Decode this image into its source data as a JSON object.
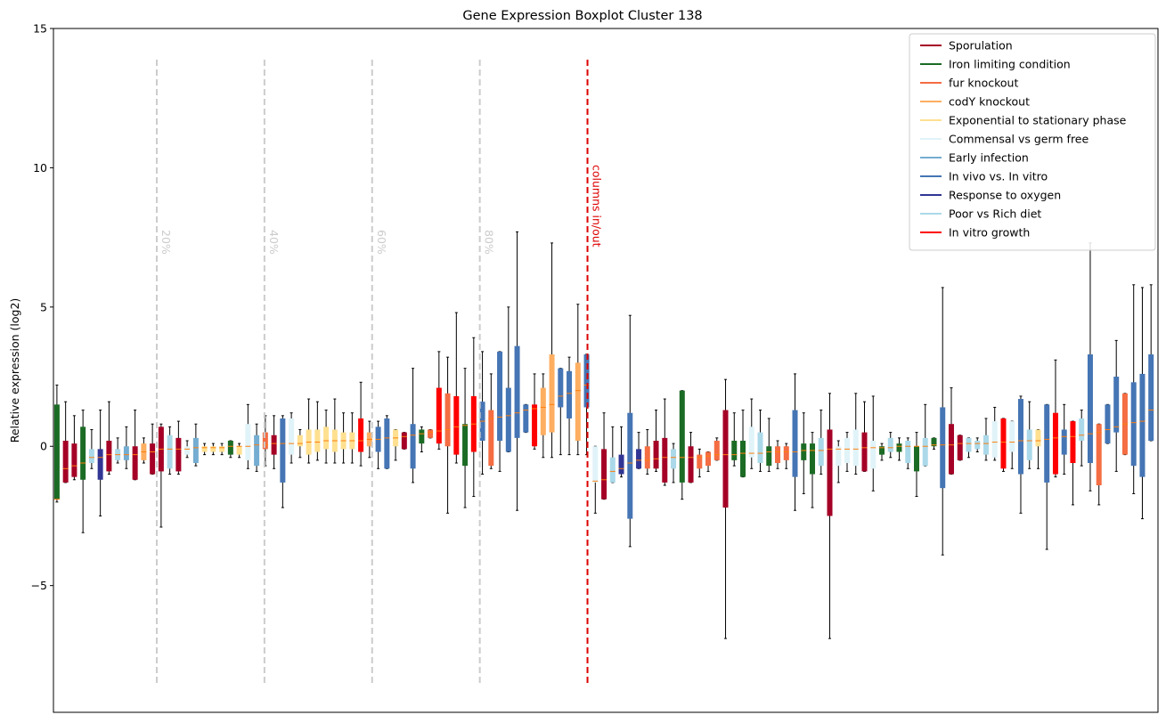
{
  "chart_data": {
    "type": "boxplot",
    "title": "Gene Expression Boxplot Cluster 138",
    "ylabel": "Relative expression (log2)",
    "ylim": [
      -9.55,
      15
    ],
    "yticks": [
      {
        "value": -5,
        "label": "−5"
      },
      0,
      5,
      10,
      15
    ],
    "xlim": [
      0.6,
      127.8
    ],
    "legend": "upper right",
    "series": [
      {
        "name": "Sporulation",
        "color": "#a50026"
      },
      {
        "name": "Iron limiting condition",
        "color": "#1b6b25"
      },
      {
        "name": "fur knockout",
        "color": "#f46d43"
      },
      {
        "name": "codY knockout",
        "color": "#fdae61"
      },
      {
        "name": "Exponential to stationary phase",
        "color": "#fee090"
      },
      {
        "name": "Commensal vs germ free",
        "color": "#e0f3f8"
      },
      {
        "name": "Early infection",
        "color": "#74add1"
      },
      {
        "name": "In vivo vs. In vitro",
        "color": "#4575b4"
      },
      {
        "name": "Response to oxygen",
        "color": "#313695"
      },
      {
        "name": "Poor vs Rich diet",
        "color": "#abd9e9"
      },
      {
        "name": "In vitro growth",
        "color": "#ff0000"
      }
    ],
    "annotations": [
      {
        "x": 12.5,
        "label": "20%",
        "color": "#cccccc"
      },
      {
        "x": 24.9,
        "label": "40%",
        "color": "#cccccc"
      },
      {
        "x": 37.3,
        "label": "60%",
        "color": "#cccccc"
      },
      {
        "x": 49.7,
        "label": "80%",
        "color": "#cccccc"
      },
      {
        "x": 62.1,
        "label": "columns in/out",
        "color": "#dd0000"
      }
    ],
    "boxes": [
      [
        1,
        -2,
        -1.9,
        -1.9,
        1.5,
        2.2
      ],
      [
        0,
        -1.3,
        -1.3,
        -0.8,
        0.2,
        1.6
      ],
      [
        0,
        -1.2,
        -1.1,
        -0.7,
        0.1,
        1.1
      ],
      [
        1,
        -3.1,
        -1.2,
        -0.6,
        0.7,
        1.3
      ],
      [
        9,
        -0.8,
        -0.6,
        -0.4,
        -0.1,
        0.6
      ],
      [
        8,
        -2.5,
        -1.2,
        -0.4,
        -0.1,
        1.3
      ],
      [
        0,
        -1,
        -0.9,
        -0.3,
        0.2,
        1.6
      ],
      [
        9,
        -0.6,
        -0.5,
        -0.3,
        -0.1,
        0.3
      ],
      [
        6,
        -0.8,
        -0.5,
        -0.3,
        0,
        0.7
      ],
      [
        0,
        -1.2,
        -1.2,
        -0.3,
        0,
        1.3
      ],
      [
        3,
        -0.6,
        -0.5,
        -0.2,
        0.1,
        0.3
      ],
      [
        0,
        -1,
        -1,
        -0.2,
        0.1,
        0.8
      ],
      [
        0,
        -2.9,
        -0.9,
        -0.1,
        0.7,
        0.8
      ],
      [
        9,
        -1,
        -0.8,
        -0.1,
        0.4,
        0.7
      ],
      [
        0,
        -1,
        -0.9,
        -0.1,
        0.3,
        0.9
      ],
      [
        5,
        -0.4,
        -0.3,
        -0.1,
        0,
        0.2
      ],
      [
        6,
        -0.7,
        -0.6,
        -0.05,
        0.3,
        0.8
      ],
      [
        4,
        -0.3,
        -0.2,
        -0.05,
        0,
        0.1
      ],
      [
        4,
        -0.3,
        -0.2,
        -0.05,
        0,
        0.1
      ],
      [
        4,
        -0.3,
        -0.2,
        -0.05,
        0,
        0.1
      ],
      [
        1,
        -0.4,
        -0.3,
        0,
        0.2,
        0.2
      ],
      [
        4,
        -0.4,
        -0.3,
        0,
        0,
        0.1
      ],
      [
        5,
        -0.8,
        -0.5,
        0,
        0.8,
        1.5
      ],
      [
        6,
        -0.9,
        -0.7,
        0.05,
        0.4,
        0.8
      ],
      [
        2,
        -0.7,
        -0.1,
        0.05,
        0.5,
        1.1
      ],
      [
        0,
        -0.8,
        -0.3,
        0.1,
        0.4,
        1.1
      ],
      [
        7,
        -2.2,
        -1.3,
        0.1,
        1,
        1.1
      ],
      [
        5,
        -0.6,
        -0.3,
        0.1,
        1,
        1.2
      ],
      [
        4,
        -0.4,
        0,
        0.1,
        0.4,
        0.6
      ],
      [
        4,
        -0.6,
        -0.3,
        0.15,
        0.6,
        1.7
      ],
      [
        4,
        -0.5,
        -0.2,
        0.15,
        0.6,
        1.6
      ],
      [
        4,
        -0.6,
        -0.1,
        0.2,
        0.7,
        1.3
      ],
      [
        4,
        -0.6,
        -0.2,
        0.2,
        0.6,
        1.7
      ],
      [
        4,
        -0.6,
        -0.1,
        0.2,
        0.5,
        1.2
      ],
      [
        4,
        -0.6,
        -0.1,
        0.2,
        0.5,
        1.2
      ],
      [
        10,
        -0.7,
        -0.2,
        0.2,
        1,
        2.3
      ],
      [
        3,
        -0.4,
        0,
        0.25,
        0.5,
        0.9
      ],
      [
        7,
        -0.8,
        -0.2,
        0.25,
        0.7,
        0.9
      ],
      [
        7,
        -0.8,
        -0.8,
        0.3,
        1,
        1.1
      ],
      [
        4,
        -0.5,
        0,
        0.3,
        0.6,
        0.6
      ],
      [
        0,
        -0.1,
        -0.1,
        0.35,
        0.5,
        0.5
      ],
      [
        7,
        -1.3,
        -0.8,
        0.4,
        0.8,
        2.8
      ],
      [
        1,
        -0.2,
        0.1,
        0.45,
        0.6,
        0.7
      ],
      [
        2,
        0.3,
        0.3,
        0.5,
        0.6,
        0.6
      ],
      [
        10,
        -0.1,
        0.1,
        0.55,
        2.1,
        3.4
      ],
      [
        2,
        -2.4,
        0,
        0.6,
        1.9,
        3.2
      ],
      [
        10,
        -0.6,
        -0.3,
        0.7,
        1.8,
        4.8
      ],
      [
        1,
        -2.2,
        -0.7,
        0.75,
        0.8,
        2.8
      ],
      [
        10,
        -1.8,
        -0.2,
        0.8,
        1.8,
        3.9
      ],
      [
        7,
        -1,
        0.2,
        0.9,
        1.6,
        3.4
      ],
      [
        2,
        -0.8,
        -0.7,
        1,
        1.3,
        2.6
      ],
      [
        7,
        -0.9,
        0.2,
        1.05,
        3.4,
        3.4
      ],
      [
        7,
        -0.2,
        -0.2,
        1.1,
        2.1,
        5
      ],
      [
        7,
        -2.3,
        0.3,
        1.2,
        3.6,
        7.7
      ],
      [
        7,
        0.5,
        0.5,
        1.3,
        1.5,
        1.5
      ],
      [
        10,
        -0.1,
        0,
        1.35,
        1.5,
        2.6
      ],
      [
        3,
        -0.4,
        0.4,
        1.4,
        2.1,
        2.6
      ],
      [
        3,
        -0.4,
        0.5,
        1.5,
        3.3,
        7.3
      ],
      [
        7,
        -0.3,
        1.4,
        1.8,
        2.8,
        2.8
      ],
      [
        7,
        -0.3,
        1,
        1.9,
        2.7,
        3.2
      ],
      [
        3,
        -0.3,
        0.2,
        2,
        3,
        5.1
      ],
      [
        7,
        -0.3,
        1.4,
        2.2,
        3.3,
        3.3
      ],
      [
        5,
        -2.4,
        -1.3,
        -1.25,
        0,
        0
      ],
      [
        0,
        -1.9,
        -1.9,
        -1.2,
        -0.1,
        1.2
      ],
      [
        9,
        -1.3,
        -1.3,
        -0.9,
        -0.4,
        0.7
      ],
      [
        8,
        -1.1,
        -1,
        -0.8,
        -0.3,
        0.7
      ],
      [
        7,
        -3.6,
        -2.6,
        -0.6,
        1.2,
        4.7
      ],
      [
        8,
        -0.8,
        -0.8,
        -0.5,
        -0.1,
        0.5
      ],
      [
        2,
        -1,
        -0.8,
        -0.5,
        0,
        0.6
      ],
      [
        0,
        -0.9,
        -0.8,
        -0.45,
        0.2,
        1.3
      ],
      [
        0,
        -1.4,
        -1.3,
        -0.4,
        0.3,
        1.7
      ],
      [
        9,
        -1.3,
        -0.8,
        -0.4,
        -0.1,
        0.1
      ],
      [
        1,
        -1.9,
        -1.3,
        -0.4,
        2,
        2
      ],
      [
        0,
        -1.3,
        -1.3,
        -0.4,
        0,
        0.5
      ],
      [
        2,
        -1.1,
        -0.8,
        -0.4,
        -0.3,
        -0.1
      ],
      [
        2,
        -0.9,
        -0.7,
        -0.35,
        -0.2,
        -0.2
      ],
      [
        2,
        -0.5,
        -0.5,
        -0.3,
        0.2,
        0.3
      ],
      [
        0,
        -6.9,
        -2.2,
        -0.3,
        1.3,
        2.4
      ],
      [
        1,
        -0.7,
        -0.5,
        -0.3,
        0.2,
        1.2
      ],
      [
        1,
        -1.1,
        -1.1,
        -0.25,
        0.2,
        1.3
      ],
      [
        5,
        -0.8,
        -0.4,
        -0.25,
        0.7,
        1.7
      ],
      [
        9,
        -0.9,
        -0.6,
        -0.25,
        0.5,
        1.3
      ],
      [
        1,
        -0.9,
        -0.7,
        -0.2,
        0,
        1
      ],
      [
        2,
        -0.8,
        -0.6,
        -0.2,
        0,
        0.2
      ],
      [
        2,
        -0.8,
        -0.5,
        -0.2,
        0,
        0.1
      ],
      [
        7,
        -2.3,
        -1.1,
        -0.2,
        1.3,
        2.6
      ],
      [
        1,
        -1.7,
        -0.5,
        -0.15,
        0.1,
        1.2
      ],
      [
        1,
        -2.2,
        -1,
        -0.15,
        0.1,
        0.5
      ],
      [
        9,
        -1,
        -0.7,
        -0.15,
        0.3,
        1.3
      ],
      [
        0,
        -6.9,
        -2.5,
        -0.1,
        0.6,
        1.9
      ],
      [
        5,
        -1.3,
        -0.7,
        -0.1,
        0,
        0.2
      ],
      [
        5,
        -0.9,
        -0.6,
        -0.1,
        0.3,
        0.5
      ],
      [
        5,
        -1,
        -0.7,
        -0.1,
        0.6,
        1.9
      ],
      [
        0,
        -0.9,
        -0.9,
        -0.05,
        0.5,
        1.6
      ],
      [
        5,
        -1.6,
        -0.8,
        -0.05,
        0.2,
        1.8
      ],
      [
        1,
        -0.5,
        -0.3,
        -0.05,
        0,
        0.1
      ],
      [
        9,
        -0.4,
        -0.2,
        -0.05,
        0.3,
        0.5
      ],
      [
        1,
        -0.5,
        -0.2,
        0,
        0.1,
        0.3
      ],
      [
        9,
        -0.8,
        -0.6,
        0,
        0.2,
        0.3
      ],
      [
        1,
        -1.8,
        -0.9,
        0,
        0,
        0.5
      ],
      [
        9,
        -0.7,
        -0.7,
        0,
        0.3,
        1.5
      ],
      [
        1,
        -0.1,
        0,
        0.05,
        0.3,
        0.3
      ],
      [
        7,
        -3.9,
        -1.5,
        0.05,
        1.4,
        5.7
      ],
      [
        0,
        -1,
        -1,
        0.05,
        0.8,
        2.1
      ],
      [
        0,
        -0.5,
        -0.5,
        0.1,
        0.4,
        0.4
      ],
      [
        9,
        -0.4,
        -0.2,
        0.1,
        0.3,
        0.3
      ],
      [
        9,
        -0.2,
        -0.1,
        0.1,
        0.2,
        0.3
      ],
      [
        9,
        -0.5,
        -0.3,
        0.1,
        0.4,
        1
      ],
      [
        5,
        -0.5,
        -0.4,
        0.15,
        0.9,
        1.4
      ],
      [
        10,
        -0.9,
        -0.8,
        0.15,
        1,
        1
      ],
      [
        5,
        -0.8,
        -0.2,
        0.15,
        0.9,
        0.9
      ],
      [
        7,
        -2.4,
        -1,
        0.2,
        1.7,
        1.8
      ],
      [
        9,
        -0.8,
        -0.5,
        0.2,
        0.6,
        1.6
      ],
      [
        4,
        -0.8,
        0,
        0.2,
        0.6,
        0.6
      ],
      [
        7,
        -3.7,
        -1.3,
        0.25,
        1.5,
        1.5
      ],
      [
        10,
        -1.1,
        -1,
        0.3,
        1.2,
        3.1
      ],
      [
        7,
        -1,
        -0.3,
        0.35,
        0.6,
        1.5
      ],
      [
        10,
        -2.1,
        -0.6,
        0.35,
        0.9,
        0.9
      ],
      [
        9,
        -0.7,
        0.2,
        0.4,
        1,
        1.3
      ],
      [
        7,
        -1.6,
        -0.6,
        0.45,
        3.3,
        7.3
      ],
      [
        2,
        -2.1,
        -1.4,
        0.5,
        0.8,
        0.8
      ],
      [
        7,
        0.1,
        0.1,
        0.6,
        1.5,
        1.5
      ],
      [
        7,
        -0.9,
        0.5,
        0.7,
        2.5,
        3.8
      ],
      [
        2,
        -0.3,
        -0.3,
        0.8,
        1.9,
        1.9
      ],
      [
        7,
        -1.7,
        -0.7,
        0.85,
        2.3,
        5.8
      ],
      [
        7,
        -2.6,
        -1.1,
        0.9,
        2.6,
        5.7
      ],
      [
        7,
        0.2,
        0.2,
        1.3,
        3.3,
        5.8
      ]
    ]
  }
}
